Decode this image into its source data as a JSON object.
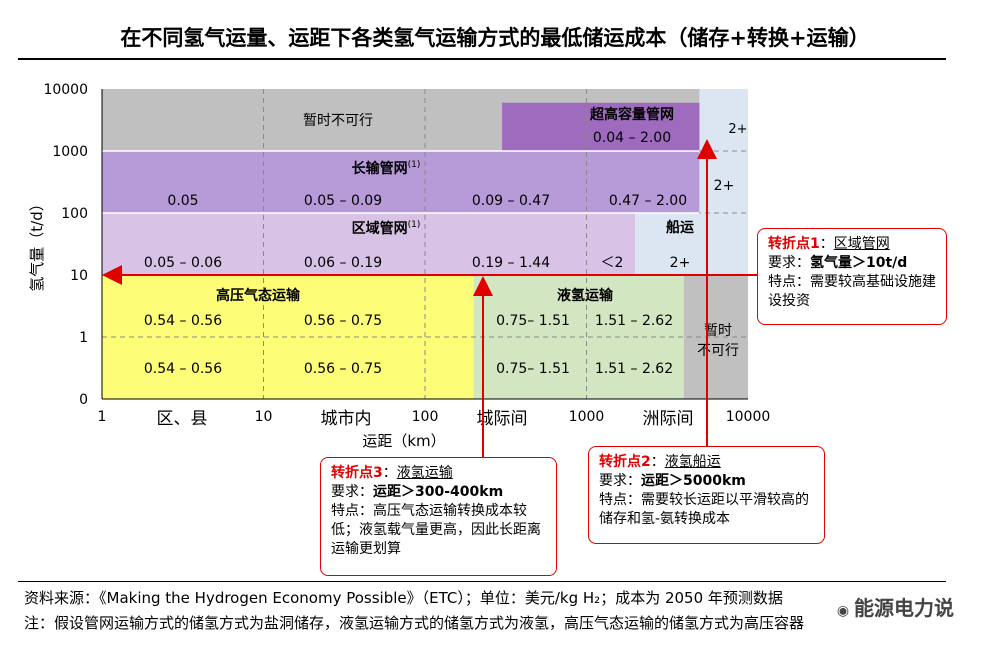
{
  "title": "在不同氢气运量、运距下各类氢气运输方式的最低储运成本（储存+转换+运输）",
  "chart_data": {
    "type": "heatmap",
    "xlabel": "运距（km）",
    "ylabel": "氢气量（t/d）",
    "x_scale": "log",
    "x_ticks": [
      "1",
      "10",
      "100",
      "1000",
      "10000"
    ],
    "x_ranges": [
      "区、县",
      "城市内",
      "城际间",
      "洲际间"
    ],
    "y_ticks": [
      "0",
      "1",
      "10",
      "100",
      "1000",
      "10000"
    ],
    "colors": {
      "infeasible": "#c0c0c0",
      "ultra_pipeline": "#9e6bbf",
      "long_pipeline": "#b79ad8",
      "regional_pipeline": "#d8c2e6",
      "compressed_gas": "#fdfd78",
      "liquid_h2": "#d3e6c2",
      "shipping": "#dbe6f2",
      "arrow": "#e00000"
    },
    "regions": [
      {
        "key": "infeasible_top",
        "label": "暂时不可行",
        "x": [
          1,
          300
        ],
        "y": [
          1000,
          10000
        ],
        "values": []
      },
      {
        "key": "ultra",
        "label": "超高容量管网",
        "x": [
          300,
          5000
        ],
        "y": [
          1000,
          10000
        ],
        "values": [
          "0.04 – 2.00"
        ]
      },
      {
        "key": "long",
        "label": "长输管网",
        "sup": "(1)",
        "x": [
          1,
          5000
        ],
        "y": [
          100,
          1000
        ],
        "values": [
          "0.05",
          "0.05 – 0.09",
          "0.09 – 0.47",
          "0.47 – 2.00"
        ]
      },
      {
        "key": "regional",
        "label": "区域管网",
        "sup": "(1)",
        "x": [
          1,
          2000
        ],
        "y": [
          10,
          100
        ],
        "values": [
          "0.05 – 0.06",
          "0.06 – 0.19",
          "0.19 – 1.44",
          "＜2"
        ]
      },
      {
        "key": "ship",
        "label": "船运",
        "x": [
          2000,
          5000
        ],
        "y": [
          10,
          100
        ],
        "values": [
          "2+"
        ]
      },
      {
        "key": "ship_right",
        "label": "",
        "x": [
          5000,
          10000
        ],
        "y": [
          10,
          10000
        ],
        "values": [
          "2+",
          "2+"
        ]
      },
      {
        "key": "gas",
        "label": "高压气态运输",
        "x": [
          1,
          200
        ],
        "y": [
          0,
          10
        ],
        "values": [
          "0.54 – 0.56",
          "0.56 – 0.75",
          "0.54 – 0.56",
          "0.56 – 0.75"
        ]
      },
      {
        "key": "liquid",
        "label": "液氢运输",
        "x": [
          200,
          4000
        ],
        "y": [
          0,
          10
        ],
        "values": [
          "0.75– 1.51",
          "1.51 – 2.62",
          "0.75– 1.51",
          "1.51 – 2.62"
        ]
      },
      {
        "key": "infeasible_right",
        "label": "暂时\n不可行",
        "x": [
          4000,
          10000
        ],
        "y": [
          0,
          10
        ],
        "values": []
      }
    ],
    "grid": true,
    "legend": "none"
  },
  "callouts": {
    "c1": {
      "head": "转折点1",
      "colon": "：",
      "name": "区域管网",
      "req_label": "要求：",
      "req_value": "氢气量＞10t/d",
      "feat_label": "特点：",
      "feat_text": "需要较高基础设施建设投资"
    },
    "c2": {
      "head": "转折点2",
      "colon": "：",
      "name": "液氢船运",
      "req_label": "要求：",
      "req_value": "运距＞5000km",
      "feat_label": "特点：",
      "feat_text": "需要较长运距以平滑较高的储存和氢-氨转换成本"
    },
    "c3": {
      "head": "转折点3",
      "colon": "：",
      "name": "液氢运输",
      "req_label": "要求：",
      "req_value": "运距＞300-400km",
      "feat_label": "特点：",
      "feat_text": "高压气态运输转换成本较低；液氢载气量更高，因此长距离运输更划算"
    }
  },
  "footnotes": {
    "source": "资料来源：《Making the Hydrogen Economy Possible》（ETC）；单位：美元/kg H₂；成本为 2050 年预测数据",
    "note": "注：假设管网运输方式的储氢方式为盐洞储存，液氢运输方式的储氢方式为液氢，高压气态运输的储氢方式为高压容器"
  },
  "watermark": "能源电力说"
}
